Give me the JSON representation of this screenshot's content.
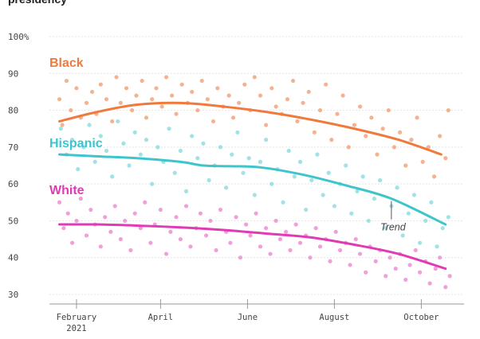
{
  "title": "presidency",
  "chart_data": {
    "type": "scatter",
    "ylim": [
      30,
      100
    ],
    "yticks": [
      {
        "value": 100,
        "label": "100%"
      },
      {
        "value": 90,
        "label": "90"
      },
      {
        "value": 80,
        "label": "80"
      },
      {
        "value": 70,
        "label": "70"
      },
      {
        "value": 60,
        "label": "60"
      },
      {
        "value": 50,
        "label": "50"
      },
      {
        "value": 40,
        "label": "40"
      },
      {
        "value": 30,
        "label": "30"
      }
    ],
    "xlim": [
      "2021-01-13",
      "2021-10-31"
    ],
    "xticks": [
      {
        "date": "2021-02-01",
        "label": "February",
        "sublabel": "2021"
      },
      {
        "date": "2021-04-01",
        "label": "April"
      },
      {
        "date": "2021-06-01",
        "label": "June"
      },
      {
        "date": "2021-08-01",
        "label": "August"
      },
      {
        "date": "2021-10-01",
        "label": "October"
      }
    ],
    "trend_annotation": {
      "text": "Trend",
      "series": "Hispanic",
      "date": "2021-09-10"
    },
    "series": [
      {
        "name": "Black",
        "color": "#f07a3c",
        "dot_color": "#f3a47c",
        "trend": [
          [
            "2021-01-20",
            77
          ],
          [
            "2021-02-15",
            79.5
          ],
          [
            "2021-03-15",
            81.5
          ],
          [
            "2021-04-15",
            82
          ],
          [
            "2021-05-15",
            81
          ],
          [
            "2021-06-15",
            79.5
          ],
          [
            "2021-07-15",
            77.5
          ],
          [
            "2021-08-15",
            75
          ],
          [
            "2021-09-15",
            72
          ],
          [
            "2021-10-15",
            68
          ]
        ],
        "points": [
          [
            "2021-01-20",
            83
          ],
          [
            "2021-01-22",
            76
          ],
          [
            "2021-01-25",
            88
          ],
          [
            "2021-01-28",
            80
          ],
          [
            "2021-02-01",
            86
          ],
          [
            "2021-02-04",
            78
          ],
          [
            "2021-02-08",
            82
          ],
          [
            "2021-02-12",
            85
          ],
          [
            "2021-02-15",
            79
          ],
          [
            "2021-02-18",
            87
          ],
          [
            "2021-02-22",
            83
          ],
          [
            "2021-02-26",
            77
          ],
          [
            "2021-03-01",
            89
          ],
          [
            "2021-03-04",
            82
          ],
          [
            "2021-03-08",
            86
          ],
          [
            "2021-03-12",
            80
          ],
          [
            "2021-03-15",
            84
          ],
          [
            "2021-03-19",
            88
          ],
          [
            "2021-03-22",
            78
          ],
          [
            "2021-03-26",
            83
          ],
          [
            "2021-03-29",
            86
          ],
          [
            "2021-04-02",
            81
          ],
          [
            "2021-04-05",
            89
          ],
          [
            "2021-04-09",
            84
          ],
          [
            "2021-04-12",
            79
          ],
          [
            "2021-04-16",
            87
          ],
          [
            "2021-04-20",
            82
          ],
          [
            "2021-04-23",
            85
          ],
          [
            "2021-04-27",
            80
          ],
          [
            "2021-04-30",
            88
          ],
          [
            "2021-05-04",
            83
          ],
          [
            "2021-05-08",
            77
          ],
          [
            "2021-05-11",
            86
          ],
          [
            "2021-05-15",
            81
          ],
          [
            "2021-05-19",
            84
          ],
          [
            "2021-05-22",
            78
          ],
          [
            "2021-05-26",
            82
          ],
          [
            "2021-05-30",
            87
          ],
          [
            "2021-06-03",
            80
          ],
          [
            "2021-06-06",
            89
          ],
          [
            "2021-06-10",
            84
          ],
          [
            "2021-06-14",
            76
          ],
          [
            "2021-06-18",
            86
          ],
          [
            "2021-06-21",
            81
          ],
          [
            "2021-06-25",
            79
          ],
          [
            "2021-06-29",
            83
          ],
          [
            "2021-07-03",
            88
          ],
          [
            "2021-07-06",
            77
          ],
          [
            "2021-07-10",
            82
          ],
          [
            "2021-07-14",
            85
          ],
          [
            "2021-07-18",
            74
          ],
          [
            "2021-07-22",
            80
          ],
          [
            "2021-07-26",
            87
          ],
          [
            "2021-07-30",
            72
          ],
          [
            "2021-08-03",
            79
          ],
          [
            "2021-08-07",
            84
          ],
          [
            "2021-08-11",
            70
          ],
          [
            "2021-08-15",
            76
          ],
          [
            "2021-08-19",
            81
          ],
          [
            "2021-08-23",
            73
          ],
          [
            "2021-08-27",
            78
          ],
          [
            "2021-08-31",
            68
          ],
          [
            "2021-09-04",
            75
          ],
          [
            "2021-09-08",
            80
          ],
          [
            "2021-09-12",
            70
          ],
          [
            "2021-09-16",
            74
          ],
          [
            "2021-09-20",
            65
          ],
          [
            "2021-09-24",
            72
          ],
          [
            "2021-09-28",
            78
          ],
          [
            "2021-10-02",
            66
          ],
          [
            "2021-10-06",
            70
          ],
          [
            "2021-10-10",
            62
          ],
          [
            "2021-10-14",
            73
          ],
          [
            "2021-10-18",
            67
          ],
          [
            "2021-10-20",
            80
          ]
        ]
      },
      {
        "name": "Hispanic",
        "color": "#3ec5cc",
        "dot_color": "#8fdde0",
        "trend": [
          [
            "2021-01-20",
            68
          ],
          [
            "2021-02-15",
            67.5
          ],
          [
            "2021-03-15",
            67
          ],
          [
            "2021-04-15",
            66
          ],
          [
            "2021-05-01",
            65
          ],
          [
            "2021-05-20",
            64.8
          ],
          [
            "2021-06-10",
            64.5
          ],
          [
            "2021-07-10",
            62.5
          ],
          [
            "2021-08-10",
            59.5
          ],
          [
            "2021-09-10",
            56
          ],
          [
            "2021-10-18",
            49
          ]
        ],
        "points": [
          [
            "2021-01-21",
            75
          ],
          [
            "2021-01-25",
            68
          ],
          [
            "2021-01-29",
            72
          ],
          [
            "2021-02-02",
            64
          ],
          [
            "2021-02-06",
            70
          ],
          [
            "2021-02-10",
            76
          ],
          [
            "2021-02-14",
            66
          ],
          [
            "2021-02-18",
            73
          ],
          [
            "2021-02-22",
            69
          ],
          [
            "2021-02-26",
            62
          ],
          [
            "2021-03-02",
            77
          ],
          [
            "2021-03-06",
            71
          ],
          [
            "2021-03-10",
            65
          ],
          [
            "2021-03-14",
            74
          ],
          [
            "2021-03-18",
            68
          ],
          [
            "2021-03-22",
            72
          ],
          [
            "2021-03-26",
            60
          ],
          [
            "2021-03-30",
            70
          ],
          [
            "2021-04-03",
            66
          ],
          [
            "2021-04-07",
            75
          ],
          [
            "2021-04-11",
            63
          ],
          [
            "2021-04-15",
            69
          ],
          [
            "2021-04-19",
            58
          ],
          [
            "2021-04-23",
            73
          ],
          [
            "2021-04-27",
            67
          ],
          [
            "2021-05-01",
            71
          ],
          [
            "2021-05-05",
            61
          ],
          [
            "2021-05-09",
            65
          ],
          [
            "2021-05-13",
            70
          ],
          [
            "2021-05-17",
            59
          ],
          [
            "2021-05-21",
            68
          ],
          [
            "2021-05-25",
            74
          ],
          [
            "2021-05-29",
            63
          ],
          [
            "2021-06-02",
            67
          ],
          [
            "2021-06-06",
            57
          ],
          [
            "2021-06-10",
            66
          ],
          [
            "2021-06-14",
            72
          ],
          [
            "2021-06-18",
            60
          ],
          [
            "2021-06-22",
            64
          ],
          [
            "2021-06-26",
            55
          ],
          [
            "2021-06-30",
            69
          ],
          [
            "2021-07-04",
            62
          ],
          [
            "2021-07-08",
            66
          ],
          [
            "2021-07-12",
            53
          ],
          [
            "2021-07-16",
            61
          ],
          [
            "2021-07-20",
            68
          ],
          [
            "2021-07-24",
            57
          ],
          [
            "2021-07-28",
            63
          ],
          [
            "2021-08-01",
            54
          ],
          [
            "2021-08-05",
            60
          ],
          [
            "2021-08-09",
            65
          ],
          [
            "2021-08-13",
            52
          ],
          [
            "2021-08-17",
            58
          ],
          [
            "2021-08-21",
            62
          ],
          [
            "2021-08-25",
            50
          ],
          [
            "2021-08-29",
            56
          ],
          [
            "2021-09-02",
            61
          ],
          [
            "2021-09-06",
            48
          ],
          [
            "2021-09-10",
            54
          ],
          [
            "2021-09-14",
            59
          ],
          [
            "2021-09-18",
            46
          ],
          [
            "2021-09-22",
            52
          ],
          [
            "2021-09-26",
            57
          ],
          [
            "2021-09-30",
            44
          ],
          [
            "2021-10-04",
            50
          ],
          [
            "2021-10-08",
            55
          ],
          [
            "2021-10-12",
            43
          ],
          [
            "2021-10-16",
            48
          ],
          [
            "2021-10-20",
            51
          ]
        ]
      },
      {
        "name": "White",
        "color": "#e03bb4",
        "dot_color": "#ec8fd3",
        "trend": [
          [
            "2021-01-20",
            49
          ],
          [
            "2021-02-15",
            49
          ],
          [
            "2021-03-15",
            48.7
          ],
          [
            "2021-04-15",
            48.2
          ],
          [
            "2021-05-15",
            47.5
          ],
          [
            "2021-06-15",
            46.5
          ],
          [
            "2021-07-15",
            45.5
          ],
          [
            "2021-08-15",
            43.5
          ],
          [
            "2021-09-15",
            41
          ],
          [
            "2021-10-18",
            37
          ]
        ],
        "points": [
          [
            "2021-01-20",
            55
          ],
          [
            "2021-01-23",
            48
          ],
          [
            "2021-01-26",
            52
          ],
          [
            "2021-01-29",
            44
          ],
          [
            "2021-02-01",
            50
          ],
          [
            "2021-02-04",
            56
          ],
          [
            "2021-02-08",
            46
          ],
          [
            "2021-02-11",
            53
          ],
          [
            "2021-02-14",
            49
          ],
          [
            "2021-02-18",
            43
          ],
          [
            "2021-02-21",
            51
          ],
          [
            "2021-02-25",
            47
          ],
          [
            "2021-02-28",
            54
          ],
          [
            "2021-03-04",
            45
          ],
          [
            "2021-03-07",
            50
          ],
          [
            "2021-03-11",
            42
          ],
          [
            "2021-03-14",
            52
          ],
          [
            "2021-03-18",
            48
          ],
          [
            "2021-03-21",
            55
          ],
          [
            "2021-03-25",
            44
          ],
          [
            "2021-03-28",
            49
          ],
          [
            "2021-04-01",
            53
          ],
          [
            "2021-04-05",
            41
          ],
          [
            "2021-04-08",
            47
          ],
          [
            "2021-04-12",
            51
          ],
          [
            "2021-04-15",
            45
          ],
          [
            "2021-04-19",
            54
          ],
          [
            "2021-04-22",
            43
          ],
          [
            "2021-04-26",
            48
          ],
          [
            "2021-04-29",
            52
          ],
          [
            "2021-05-03",
            46
          ],
          [
            "2021-05-06",
            50
          ],
          [
            "2021-05-10",
            42
          ],
          [
            "2021-05-13",
            53
          ],
          [
            "2021-05-17",
            47
          ],
          [
            "2021-05-20",
            44
          ],
          [
            "2021-05-24",
            51
          ],
          [
            "2021-05-27",
            40
          ],
          [
            "2021-05-31",
            49
          ],
          [
            "2021-06-03",
            46
          ],
          [
            "2021-06-07",
            52
          ],
          [
            "2021-06-10",
            43
          ],
          [
            "2021-06-14",
            48
          ],
          [
            "2021-06-17",
            41
          ],
          [
            "2021-06-21",
            50
          ],
          [
            "2021-06-24",
            45
          ],
          [
            "2021-06-28",
            47
          ],
          [
            "2021-07-01",
            42
          ],
          [
            "2021-07-05",
            49
          ],
          [
            "2021-07-08",
            44
          ],
          [
            "2021-07-12",
            46
          ],
          [
            "2021-07-15",
            40
          ],
          [
            "2021-07-19",
            48
          ],
          [
            "2021-07-22",
            43
          ],
          [
            "2021-07-26",
            45
          ],
          [
            "2021-07-29",
            39
          ],
          [
            "2021-08-02",
            47
          ],
          [
            "2021-08-05",
            42
          ],
          [
            "2021-08-09",
            44
          ],
          [
            "2021-08-12",
            38
          ],
          [
            "2021-08-16",
            45
          ],
          [
            "2021-08-19",
            41
          ],
          [
            "2021-08-23",
            36
          ],
          [
            "2021-08-26",
            43
          ],
          [
            "2021-08-30",
            39
          ],
          [
            "2021-09-02",
            42
          ],
          [
            "2021-09-06",
            35
          ],
          [
            "2021-09-09",
            40
          ],
          [
            "2021-09-13",
            37
          ],
          [
            "2021-09-16",
            41
          ],
          [
            "2021-09-20",
            34
          ],
          [
            "2021-09-23",
            38
          ],
          [
            "2021-09-27",
            42
          ],
          [
            "2021-09-30",
            36
          ],
          [
            "2021-10-04",
            39
          ],
          [
            "2021-10-07",
            33
          ],
          [
            "2021-10-11",
            37
          ],
          [
            "2021-10-14",
            40
          ],
          [
            "2021-10-18",
            32
          ],
          [
            "2021-10-21",
            35
          ]
        ]
      }
    ]
  }
}
